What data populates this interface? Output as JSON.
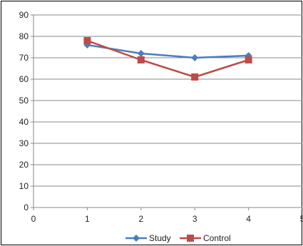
{
  "chart_data": {
    "type": "line",
    "title": "",
    "xlabel": "",
    "ylabel": "",
    "x": [
      1,
      2,
      3,
      4
    ],
    "x_ticks": [
      "0",
      "1",
      "2",
      "3",
      "4",
      "5"
    ],
    "xlim": [
      0,
      5
    ],
    "y_ticks": [
      "0",
      "10",
      "20",
      "30",
      "40",
      "50",
      "60",
      "70",
      "80",
      "90"
    ],
    "ylim": [
      0,
      90
    ],
    "grid": "horizontal",
    "legend": "bottom",
    "series": [
      {
        "name": "Study",
        "values": [
          76,
          72,
          70,
          71
        ],
        "color": "#4a7ebb",
        "marker": "diamond"
      },
      {
        "name": "Control",
        "values": [
          78,
          69,
          61,
          69
        ],
        "color": "#be4b48",
        "marker": "square"
      }
    ]
  }
}
